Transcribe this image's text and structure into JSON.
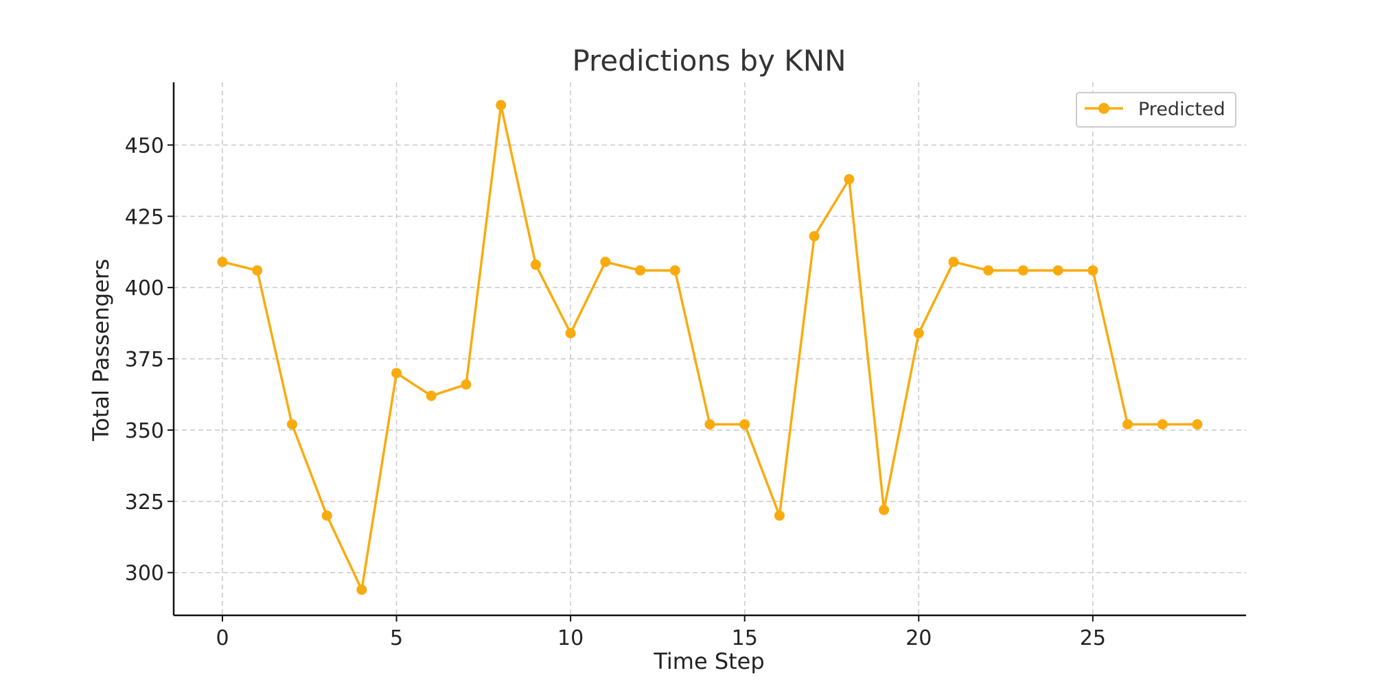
{
  "chart_data": {
    "type": "line",
    "title": "Predictions by KNN",
    "xlabel": "Time Step",
    "ylabel": "Total Passengers",
    "xlim": [
      -1.4,
      29.4
    ],
    "ylim": [
      285,
      472
    ],
    "xticks": [
      0,
      5,
      10,
      15,
      20,
      25
    ],
    "yticks": [
      300,
      325,
      350,
      375,
      400,
      425,
      450
    ],
    "grid": true,
    "legend": "top-right",
    "series": [
      {
        "name": "Predicted",
        "color": "#f9ab0e",
        "marker": "circle",
        "x": [
          0,
          1,
          2,
          3,
          4,
          5,
          6,
          7,
          8,
          9,
          10,
          11,
          12,
          13,
          14,
          15,
          16,
          17,
          18,
          19,
          20,
          21,
          22,
          23,
          24,
          25,
          26,
          27,
          28
        ],
        "y": [
          409,
          406,
          352,
          320,
          294,
          370,
          362,
          366,
          464,
          408,
          384,
          409,
          406,
          406,
          352,
          352,
          320,
          418,
          438,
          322,
          384,
          409,
          406,
          406,
          406,
          406,
          352,
          352,
          352
        ]
      }
    ]
  }
}
